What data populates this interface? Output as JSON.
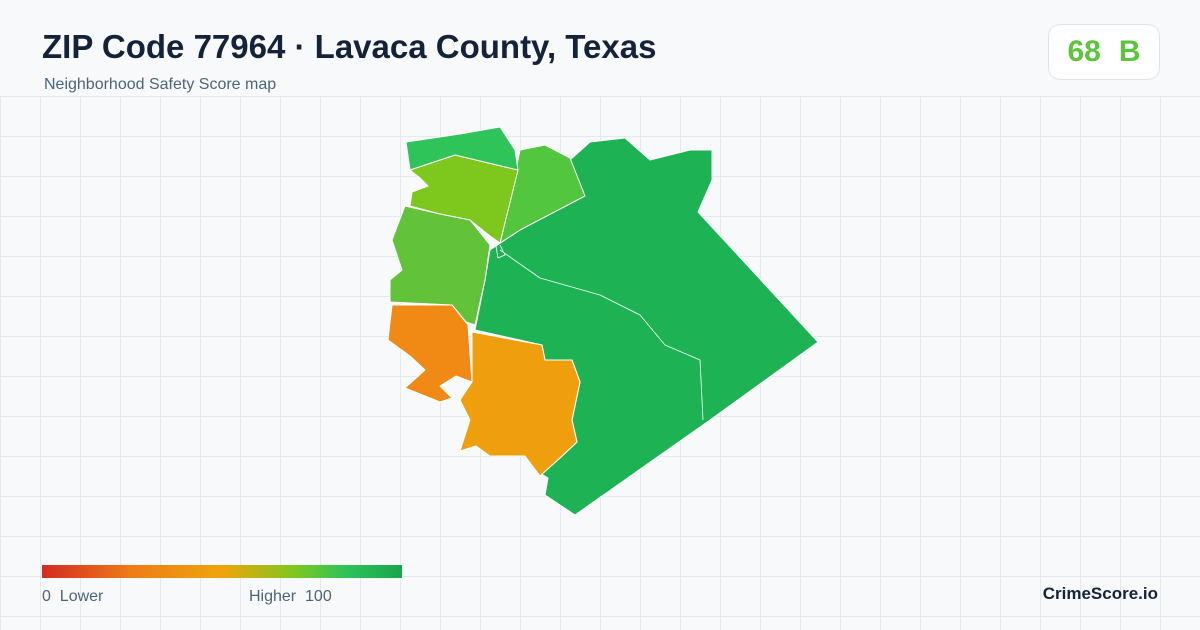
{
  "header": {
    "title": "ZIP Code 77964 · Lavaca County, Texas",
    "subtitle": "Neighborhood Safety Score map"
  },
  "score": {
    "value": 68,
    "grade": "B"
  },
  "legend": {
    "min": 0,
    "min_label": "Lower",
    "max_label": "Higher",
    "max": 100
  },
  "brand": "CrimeScore.io"
}
